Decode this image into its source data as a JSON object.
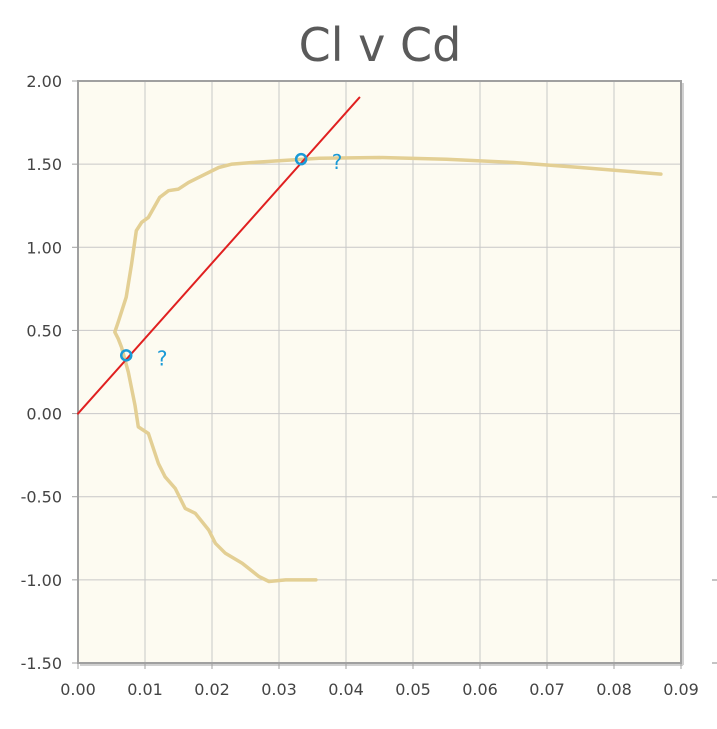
{
  "chart_data": {
    "type": "line",
    "title": "Cl v Cd",
    "xlabel": "",
    "ylabel": "",
    "xlim": [
      0.0,
      0.09
    ],
    "ylim": [
      -1.5,
      2.0
    ],
    "x_ticks": [
      "0.00",
      "0.01",
      "0.02",
      "0.03",
      "0.04",
      "0.05",
      "0.06",
      "0.07",
      "0.08",
      "0.09"
    ],
    "y_ticks": [
      "2.00",
      "1.50",
      "1.00",
      "0.50",
      "0.00",
      "-0.50",
      "-1.00",
      "-1.50"
    ],
    "grid": true,
    "series": [
      {
        "color": "#e3cf94",
        "x": [
          0.0355,
          0.031,
          0.0285,
          0.027,
          0.0245,
          0.022,
          0.0205,
          0.0195,
          0.0175,
          0.016,
          0.0145,
          0.013,
          0.012,
          0.0105,
          0.009,
          0.0085,
          0.0075,
          0.0065,
          0.006,
          0.0055,
          0.006,
          0.0072,
          0.008,
          0.0087,
          0.0095,
          0.0105,
          0.0122,
          0.0135,
          0.015,
          0.0165,
          0.0185,
          0.021,
          0.023,
          0.026,
          0.03,
          0.036,
          0.045,
          0.055,
          0.065,
          0.075,
          0.087
        ],
        "y": [
          -1.0,
          -1.0,
          -1.01,
          -0.98,
          -0.9,
          -0.84,
          -0.78,
          -0.7,
          -0.6,
          -0.57,
          -0.45,
          -0.38,
          -0.3,
          -0.12,
          -0.08,
          0.05,
          0.25,
          0.4,
          0.45,
          0.49,
          0.55,
          0.7,
          0.9,
          1.1,
          1.15,
          1.18,
          1.3,
          1.34,
          1.35,
          1.39,
          1.43,
          1.48,
          1.5,
          1.51,
          1.52,
          1.535,
          1.54,
          1.53,
          1.51,
          1.48,
          1.44
        ]
      },
      {
        "color": "#e02020",
        "x": [
          0.0,
          0.042
        ],
        "y": [
          0.0,
          1.9
        ]
      }
    ],
    "markers": [
      {
        "x": 0.0072,
        "y": 0.35,
        "label": "?"
      },
      {
        "x": 0.0333,
        "y": 1.53,
        "label": "?"
      }
    ],
    "colors": {
      "plot_bg": "#fdfbf1",
      "grid": "#c8c8c8",
      "frame": "#a0a0a0",
      "curve": "#e3cf94",
      "tangent": "#e02020",
      "marker": "#1a9ad6",
      "text": "#444444"
    }
  }
}
